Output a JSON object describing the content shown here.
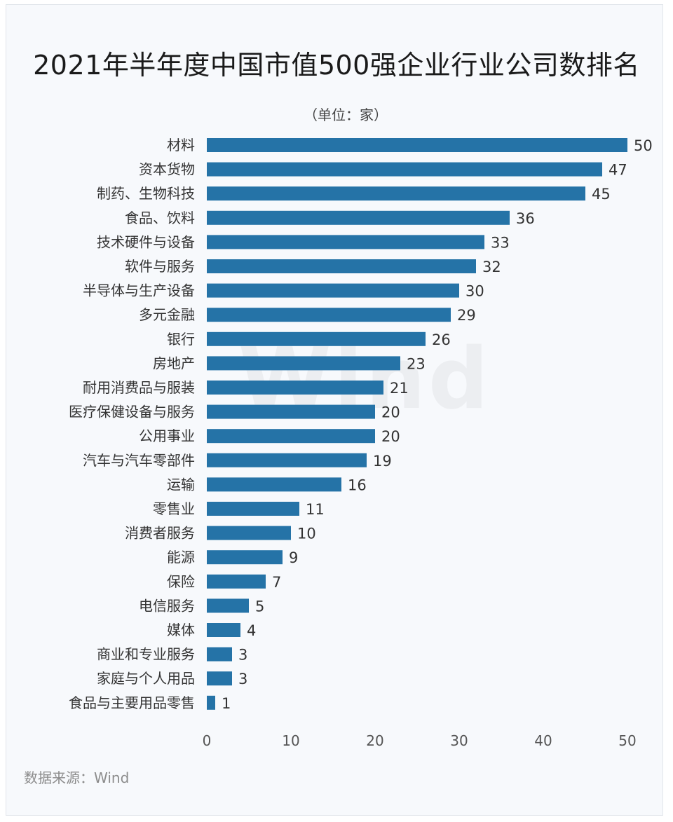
{
  "title": "2021年半年度中国市值500强企业行业公司数排名",
  "unit_label": "（单位：家）",
  "source": "数据来源：Wind",
  "watermark": "Wind",
  "colors": {
    "bar": "#2573a7",
    "label_text": "#333333",
    "tick_text": "#555555"
  },
  "chart_data": {
    "type": "bar",
    "orientation": "horizontal",
    "title": "2021年半年度中国市值500强企业行业公司数排名",
    "unit": "（单位：家）",
    "xlim": [
      0,
      50
    ],
    "xticks": [
      0,
      10,
      20,
      30,
      40,
      50
    ],
    "grid": false,
    "categories": [
      "材料",
      "资本货物",
      "制药、生物科技",
      "食品、饮料",
      "技术硬件与设备",
      "软件与服务",
      "半导体与生产设备",
      "多元金融",
      "银行",
      "房地产",
      "耐用消费品与服装",
      "医疗保健设备与服务",
      "公用事业",
      "汽车与汽车零部件",
      "运输",
      "零售业",
      "消费者服务",
      "能源",
      "保险",
      "电信服务",
      "媒体",
      "商业和专业服务",
      "家庭与个人用品",
      "食品与主要用品零售"
    ],
    "values": [
      50,
      47,
      45,
      36,
      33,
      32,
      30,
      29,
      26,
      23,
      21,
      20,
      20,
      19,
      16,
      11,
      10,
      9,
      7,
      5,
      4,
      3,
      3,
      1
    ]
  }
}
